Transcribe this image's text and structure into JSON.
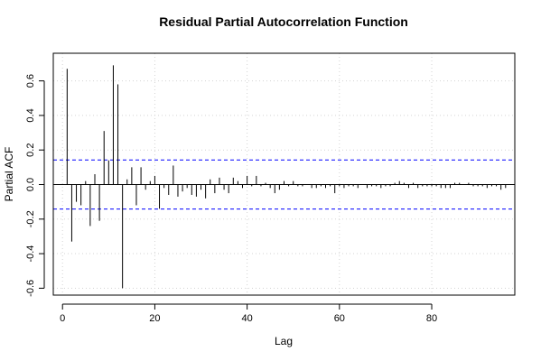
{
  "chart_data": {
    "type": "bar",
    "title": "Residual Partial Autocorrelation Function",
    "xlabel": "Lag",
    "ylabel": "Partial ACF",
    "xlim": [
      -2,
      98
    ],
    "ylim": [
      -0.64,
      0.76
    ],
    "x_ticks": [
      0,
      20,
      40,
      60,
      80
    ],
    "y_ticks": [
      -0.6,
      -0.4,
      -0.2,
      0.0,
      0.2,
      0.4,
      0.6
    ],
    "y_tick_labels": [
      "-0.6",
      "-0.4",
      "-0.2",
      "0.0",
      "0.2",
      "0.4",
      "0.6"
    ],
    "grid": true,
    "confidence_bound": 0.142,
    "colors": {
      "bars": "#000000",
      "confidence": "#0000ff",
      "grid": "#d3d3d3",
      "zero_line": "#000000"
    },
    "lags": [
      1,
      2,
      3,
      4,
      5,
      6,
      7,
      8,
      9,
      10,
      11,
      12,
      13,
      14,
      15,
      16,
      17,
      18,
      19,
      20,
      21,
      22,
      23,
      24,
      25,
      26,
      27,
      28,
      29,
      30,
      31,
      32,
      33,
      34,
      35,
      36,
      37,
      38,
      39,
      40,
      41,
      42,
      43,
      44,
      45,
      46,
      47,
      48,
      49,
      50,
      51,
      52,
      53,
      54,
      55,
      56,
      57,
      58,
      59,
      60,
      61,
      62,
      63,
      64,
      65,
      66,
      67,
      68,
      69,
      70,
      71,
      72,
      73,
      74,
      75,
      76,
      77,
      78,
      79,
      80,
      81,
      82,
      83,
      84,
      85,
      86,
      87,
      88,
      89,
      90,
      91,
      92,
      93,
      94,
      95,
      96
    ],
    "values": [
      0.67,
      -0.33,
      -0.1,
      -0.12,
      0.02,
      -0.24,
      0.06,
      -0.21,
      0.31,
      0.14,
      0.69,
      0.58,
      -0.6,
      0.03,
      0.1,
      -0.12,
      0.1,
      -0.03,
      0.02,
      0.05,
      -0.14,
      -0.02,
      -0.06,
      0.11,
      -0.07,
      -0.04,
      -0.02,
      -0.06,
      -0.07,
      -0.03,
      -0.08,
      0.03,
      -0.05,
      0.04,
      -0.03,
      -0.05,
      0.04,
      0.02,
      -0.02,
      0.05,
      -0.01,
      0.05,
      -0.01,
      0.01,
      -0.02,
      -0.05,
      -0.03,
      0.02,
      -0.01,
      0.02,
      -0.01,
      -0.01,
      0.0,
      -0.02,
      -0.02,
      -0.01,
      -0.02,
      -0.01,
      -0.05,
      -0.01,
      -0.02,
      -0.01,
      -0.01,
      -0.02,
      0.0,
      -0.02,
      -0.01,
      -0.01,
      -0.02,
      -0.01,
      -0.01,
      0.01,
      0.02,
      0.01,
      -0.02,
      0.01,
      -0.02,
      -0.01,
      -0.01,
      -0.01,
      -0.01,
      -0.02,
      -0.02,
      -0.02,
      0.01,
      0.01,
      0.0,
      0.01,
      -0.01,
      -0.01,
      -0.01,
      -0.02,
      -0.01,
      -0.01,
      -0.03,
      -0.02
    ]
  }
}
